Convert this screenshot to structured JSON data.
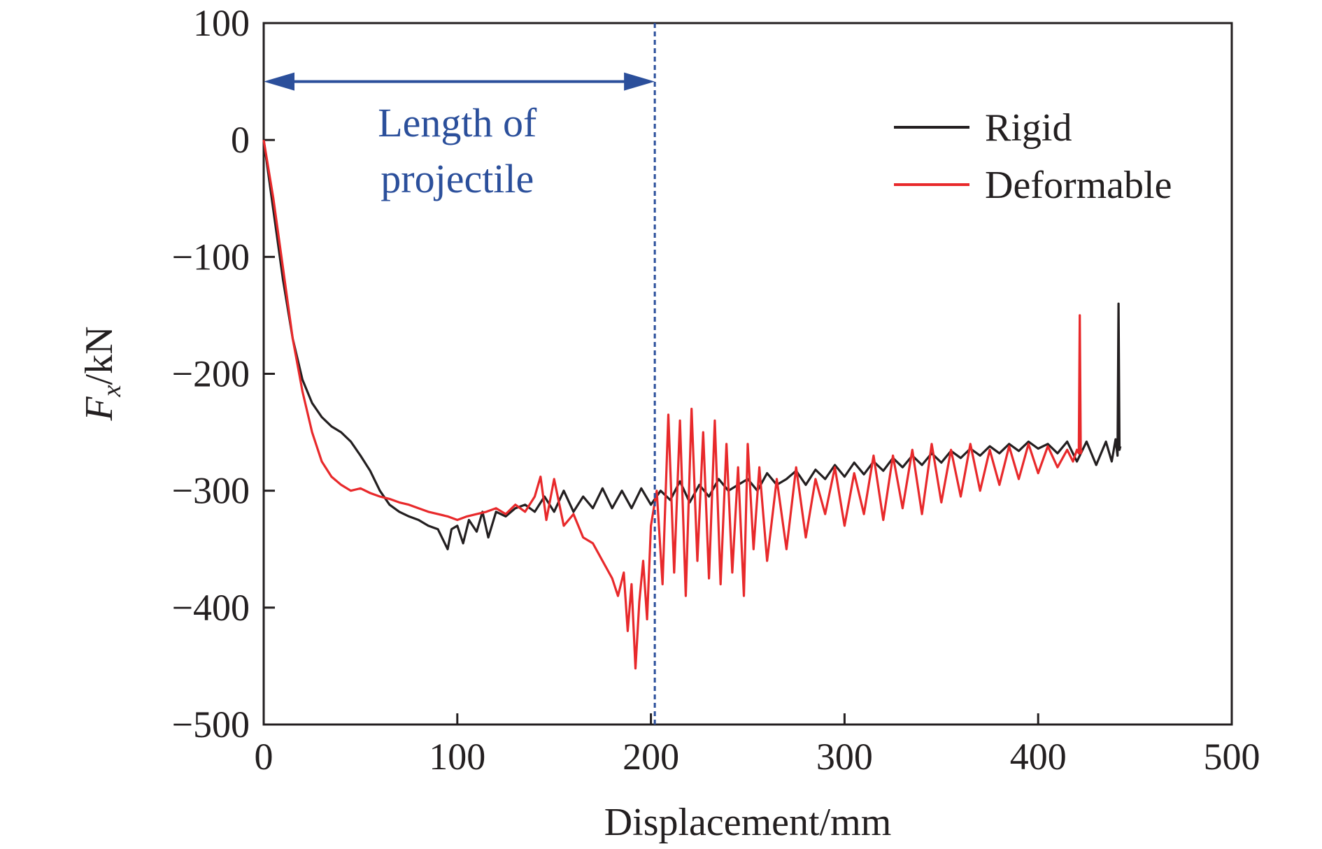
{
  "chart_data": {
    "type": "line",
    "title": "",
    "xlabel": "Displacement/mm",
    "ylabel": {
      "main": "F",
      "sub": "x",
      "unit": "/kN"
    },
    "xlim": [
      0,
      500
    ],
    "ylim": [
      -500,
      100
    ],
    "xticks": [
      0,
      100,
      200,
      300,
      400,
      500
    ],
    "yticks": [
      100,
      0,
      -100,
      -200,
      -300,
      -400,
      -500
    ],
    "xtick_labels": [
      "0",
      "100",
      "200",
      "300",
      "400",
      "500"
    ],
    "ytick_labels": [
      "100",
      "0",
      "−100",
      "−200",
      "−300",
      "−400",
      "−500"
    ],
    "grid": false,
    "legend_position": "top-right",
    "colors": {
      "rigid": "#231f20",
      "deformable": "#e8292b",
      "annotation": "#2b4f9b"
    },
    "annotation": {
      "lines": [
        "Length of",
        "projectile"
      ],
      "arrow_from_x": 0,
      "arrow_to_x": 202,
      "arrow_y": 50,
      "dashed_line_x": 202
    },
    "series": [
      {
        "name": "Rigid",
        "color": "#231f20",
        "x": [
          0,
          5,
          10,
          15,
          20,
          25,
          30,
          35,
          40,
          45,
          50,
          55,
          60,
          65,
          70,
          75,
          80,
          85,
          90,
          95,
          97,
          100,
          103,
          106,
          110,
          113,
          116,
          120,
          125,
          130,
          135,
          140,
          145,
          150,
          155,
          160,
          165,
          170,
          175,
          180,
          185,
          190,
          195,
          200,
          205,
          210,
          215,
          220,
          225,
          230,
          235,
          240,
          245,
          250,
          255,
          260,
          265,
          270,
          275,
          280,
          285,
          290,
          295,
          300,
          305,
          310,
          315,
          320,
          325,
          330,
          335,
          340,
          345,
          350,
          355,
          360,
          365,
          370,
          375,
          380,
          385,
          390,
          395,
          400,
          405,
          410,
          415,
          420,
          425,
          430,
          435,
          438,
          440,
          441,
          441.5,
          442,
          442.5
        ],
        "values": [
          0,
          -60,
          -120,
          -170,
          -205,
          -225,
          -237,
          -245,
          -250,
          -258,
          -270,
          -283,
          -300,
          -312,
          -318,
          -322,
          -325,
          -330,
          -333,
          -350,
          -333,
          -330,
          -345,
          -325,
          -335,
          -318,
          -340,
          -318,
          -322,
          -315,
          -312,
          -318,
          -305,
          -318,
          -300,
          -318,
          -305,
          -315,
          -298,
          -315,
          -300,
          -315,
          -298,
          -312,
          -300,
          -308,
          -292,
          -310,
          -295,
          -305,
          -290,
          -300,
          -295,
          -290,
          -300,
          -285,
          -295,
          -290,
          -283,
          -295,
          -282,
          -290,
          -278,
          -288,
          -276,
          -286,
          -275,
          -283,
          -272,
          -280,
          -270,
          -278,
          -268,
          -276,
          -266,
          -272,
          -264,
          -270,
          -262,
          -268,
          -260,
          -266,
          -258,
          -264,
          -260,
          -268,
          -258,
          -275,
          -258,
          -278,
          -258,
          -275,
          -256,
          -270,
          -140,
          -265,
          -262
        ]
      },
      {
        "name": "Deformable",
        "color": "#e8292b",
        "x": [
          0,
          5,
          10,
          15,
          20,
          25,
          30,
          35,
          40,
          45,
          50,
          55,
          60,
          65,
          70,
          75,
          80,
          85,
          90,
          95,
          100,
          105,
          110,
          115,
          120,
          125,
          130,
          135,
          140,
          143,
          146,
          150,
          155,
          160,
          165,
          170,
          175,
          180,
          183,
          186,
          188,
          190,
          192,
          194,
          196,
          198,
          200,
          203,
          206,
          209,
          212,
          215,
          218,
          221,
          224,
          227,
          230,
          233,
          236,
          239,
          242,
          245,
          248,
          250,
          253,
          256,
          260,
          265,
          270,
          275,
          280,
          285,
          290,
          295,
          300,
          305,
          310,
          315,
          320,
          325,
          330,
          335,
          340,
          345,
          350,
          355,
          360,
          365,
          370,
          375,
          380,
          385,
          390,
          395,
          400,
          405,
          410,
          415,
          418,
          420,
          421,
          421.5,
          422,
          422.5
        ],
        "values": [
          0,
          -50,
          -110,
          -170,
          -215,
          -250,
          -275,
          -288,
          -295,
          -300,
          -298,
          -302,
          -305,
          -307,
          -310,
          -312,
          -315,
          -318,
          -320,
          -322,
          -325,
          -322,
          -320,
          -318,
          -315,
          -320,
          -312,
          -318,
          -305,
          -288,
          -325,
          -290,
          -330,
          -320,
          -340,
          -345,
          -360,
          -375,
          -390,
          -370,
          -420,
          -380,
          -452,
          -395,
          -360,
          -410,
          -330,
          -300,
          -380,
          -235,
          -370,
          -240,
          -390,
          -230,
          -360,
          -250,
          -375,
          -240,
          -380,
          -260,
          -370,
          -280,
          -390,
          -260,
          -350,
          -280,
          -360,
          -290,
          -350,
          -280,
          -340,
          -290,
          -320,
          -280,
          -330,
          -285,
          -320,
          -270,
          -325,
          -270,
          -315,
          -265,
          -320,
          -260,
          -310,
          -265,
          -305,
          -260,
          -300,
          -265,
          -295,
          -262,
          -290,
          -260,
          -285,
          -262,
          -280,
          -265,
          -275,
          -265,
          -268,
          -150,
          -268,
          -265
        ]
      }
    ]
  }
}
